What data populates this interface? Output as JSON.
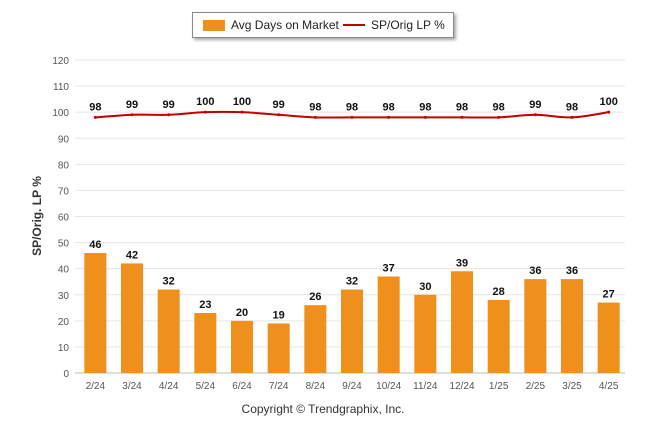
{
  "legend": {
    "bar_label": "Avg Days on Market",
    "line_label": "SP/Orig LP %"
  },
  "footer": {
    "copyright": "Copyright © Trendgraphix, Inc."
  },
  "colors": {
    "bar": "#f0901c",
    "line": "#c00000",
    "grid": "#e6e6e6",
    "axis_text": "#555555"
  },
  "chart_data": {
    "type": "bar",
    "categories": [
      "2/24",
      "3/24",
      "4/24",
      "5/24",
      "6/24",
      "7/24",
      "8/24",
      "9/24",
      "10/24",
      "11/24",
      "12/24",
      "1/25",
      "2/25",
      "3/25",
      "4/25"
    ],
    "series": [
      {
        "name": "Avg Days on Market",
        "type": "bar",
        "values": [
          46,
          42,
          32,
          23,
          20,
          19,
          26,
          32,
          37,
          30,
          39,
          28,
          36,
          36,
          27
        ]
      },
      {
        "name": "SP/Orig LP %",
        "type": "line",
        "values": [
          98,
          99,
          99,
          100,
          100,
          99,
          98,
          98,
          98,
          98,
          98,
          98,
          99,
          98,
          100
        ]
      }
    ],
    "ylabel": "SP/Orig. LP %",
    "ylim": [
      0,
      120
    ],
    "yticks": [
      0,
      10,
      20,
      30,
      40,
      50,
      60,
      70,
      80,
      90,
      100,
      110,
      120
    ],
    "grid": true,
    "legend_position": "top"
  }
}
